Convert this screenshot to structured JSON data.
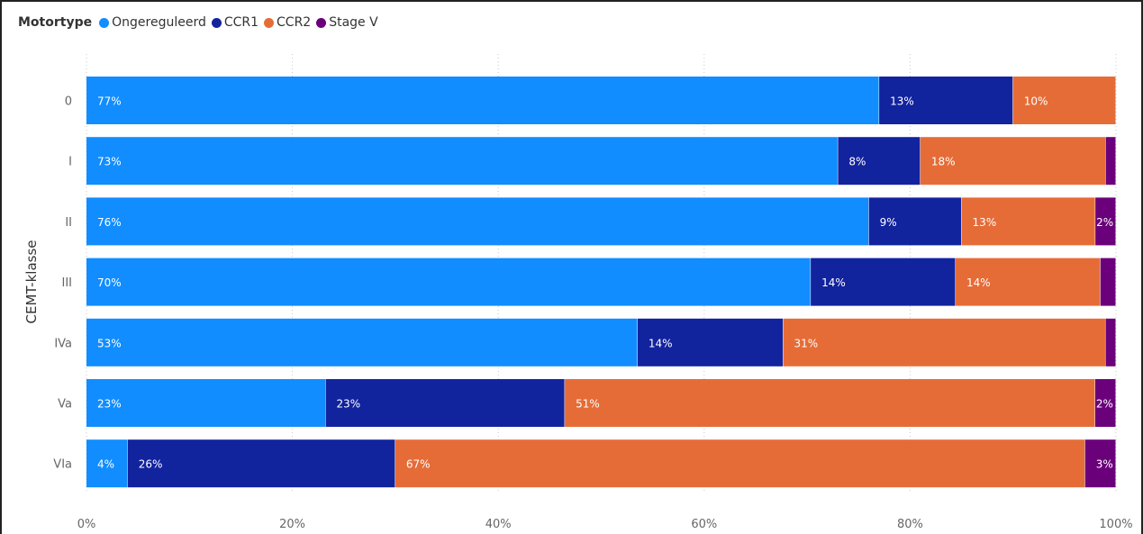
{
  "legend": {
    "title": "Motortype"
  },
  "chart_data": {
    "type": "bar",
    "orientation": "horizontal",
    "stacked": "100%",
    "ylabel": "CEMT-klasse",
    "xlabel": "",
    "categories": [
      "0",
      "I",
      "II",
      "III",
      "IVa",
      "Va",
      "VIa"
    ],
    "x_ticks": [
      "0%",
      "20%",
      "40%",
      "60%",
      "80%",
      "100%"
    ],
    "xlim": [
      0,
      100
    ],
    "grid": "vertical dotted",
    "legend_position": "top-left",
    "series": [
      {
        "name": "Ongereguleerd",
        "color": "#118DFF",
        "values": [
          77,
          73,
          76,
          70,
          53,
          23,
          4
        ],
        "labels": [
          "77%",
          "73%",
          "76%",
          "70%",
          "53%",
          "23%",
          "4%"
        ]
      },
      {
        "name": "CCR1",
        "color": "#12239E",
        "values": [
          13,
          8,
          9,
          14,
          14,
          23,
          26
        ],
        "labels": [
          "13%",
          "8%",
          "9%",
          "14%",
          "14%",
          "23%",
          "26%"
        ]
      },
      {
        "name": "CCR2",
        "color": "#E66C37",
        "values": [
          10,
          18,
          13,
          14,
          31,
          51,
          67
        ],
        "labels": [
          "10%",
          "18%",
          "13%",
          "14%",
          "31%",
          "51%",
          "67%"
        ]
      },
      {
        "name": "Stage V",
        "color": "#6B007B",
        "values": [
          0,
          1,
          2,
          1.5,
          1,
          2,
          3
        ],
        "labels": [
          "",
          "",
          "2%",
          "",
          "",
          "2%",
          "3%"
        ]
      }
    ]
  }
}
